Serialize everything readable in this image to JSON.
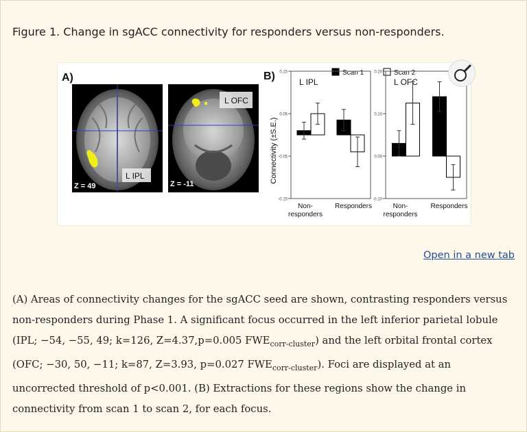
{
  "figure": {
    "title": "Figure 1. Change in sgACC connectivity for responders versus non-responders."
  },
  "panel_a": {
    "label": "A)",
    "left_brain": {
      "slice": "Z = 49",
      "region": "L IPL"
    },
    "right_brain": {
      "slice": "Z = -11",
      "region": "L OFC"
    }
  },
  "panel_b": {
    "label": "B)",
    "ylabel": "Connectivity (±S.E.)"
  },
  "chart_data": [
    {
      "type": "bar",
      "title": "L IPL",
      "categories": [
        "Non-responders",
        "Responders"
      ],
      "category_lines": [
        [
          "Non-",
          "responders"
        ],
        [
          "Responders"
        ]
      ],
      "series": [
        {
          "name": "Scan 1",
          "values": [
            0.01,
            0.035
          ],
          "errors": [
            0.02,
            0.025
          ]
        },
        {
          "name": "Scan 2",
          "values": [
            0.05,
            -0.04
          ],
          "errors": [
            0.025,
            0.035
          ]
        }
      ],
      "ylim": [
        -0.15,
        0.15
      ],
      "ytick_labels": [
        "0.15",
        "0.05",
        "-0.05",
        "-0.15"
      ],
      "ytick_values": [
        0.15,
        0.05,
        -0.05,
        -0.15
      ],
      "ylabel": "Connectivity (±S.E.)",
      "legend": "top"
    },
    {
      "type": "bar",
      "title": "L OFC",
      "categories": [
        "Non-responders",
        "Responders"
      ],
      "category_lines": [
        [
          "Non-",
          "responders"
        ],
        [
          "Responders"
        ]
      ],
      "series": [
        {
          "name": "Scan 1",
          "values": [
            0.03,
            0.14
          ],
          "errors": [
            0.03,
            0.035
          ]
        },
        {
          "name": "Scan 2",
          "values": [
            0.125,
            -0.05
          ],
          "errors": [
            0.05,
            0.03
          ]
        }
      ],
      "ylim": [
        -0.1,
        0.2
      ],
      "ytick_labels": [
        "0.20",
        "0.10",
        "0.00",
        "-0.10"
      ],
      "ytick_values": [
        0.2,
        0.1,
        0.0,
        -0.1
      ],
      "legend": "top"
    }
  ],
  "legend": {
    "scan1": "Scan 1",
    "scan2": "Scan 2",
    "scan1_color": "#000000",
    "scan2_color": "#ffffff"
  },
  "link": {
    "open_new_tab": "Open in a new tab"
  },
  "caption": {
    "p1": "(A) Areas of connectivity changes for the sgACC seed are shown, contrasting responders versus non-responders during Phase 1. A significant focus occurred in the left inferior parietal lobule (IPL; −54, −55, 49; k=126, Z=4.37,p=0.005 FWE",
    "sub1": "corr-cluster",
    "p2": ") and the left orbital frontal cortex (OFC; −30, 50, −11; k=87, Z=3.93, p=0.027 FWE",
    "sub2": "corr-cluster",
    "p3": "). Foci are displayed at an uncorrected threshold of p<0.001. (B) Extractions for these regions show the change in connectivity from scan 1 to scan 2, for each focus."
  },
  "colors": {
    "background": "#fdf8ea",
    "link": "#1f4f9a",
    "crosshair": "#2f3fbf",
    "activation": "#f2ee1a"
  }
}
